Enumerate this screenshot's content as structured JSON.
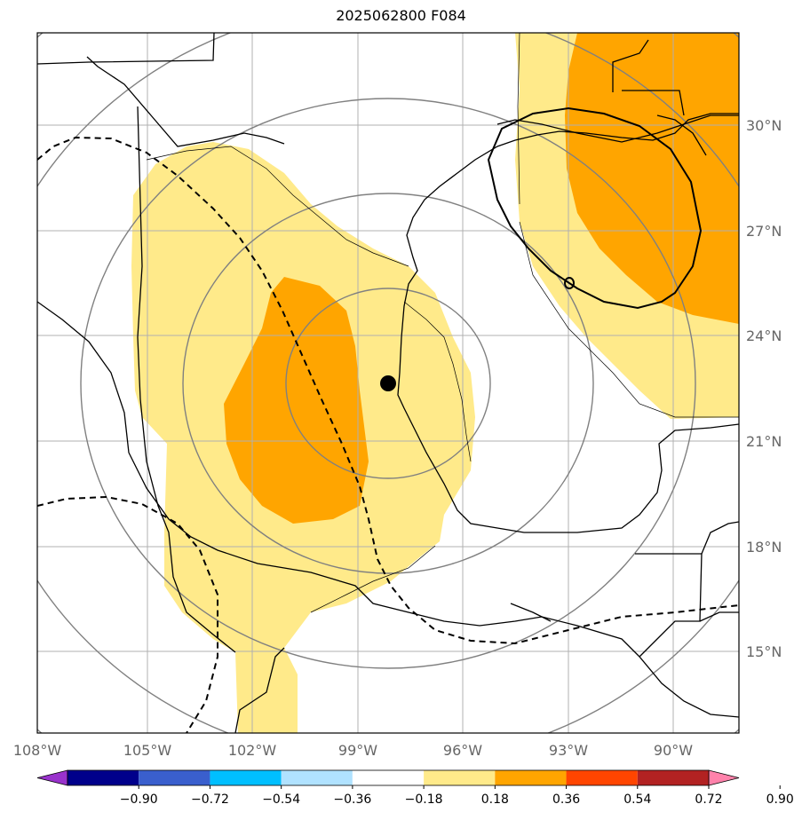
{
  "title": "2025062800 F084",
  "map": {
    "lon_labels": [
      "108°W",
      "105°W",
      "102°W",
      "99°W",
      "96°W",
      "93°W",
      "90°W"
    ],
    "lat_labels": [
      "30°N",
      "27°N",
      "24°N",
      "21°N",
      "18°N",
      "15°N"
    ],
    "storm_center": {
      "lon": -97.9,
      "lat": 22.6
    }
  },
  "colorbar": {
    "ticks": [
      "−0.90",
      "−0.72",
      "−0.54",
      "−0.36",
      "−0.18",
      "0.18",
      "0.36",
      "0.54",
      "0.72",
      "0.90"
    ],
    "colors": [
      "#9932cc",
      "#00008b",
      "#3a5fcd",
      "#00bfff",
      "#b0e2ff",
      "#ffffff",
      "#ffea8a",
      "#ffa500",
      "#ff4500",
      "#b22222",
      "#ff82ab"
    ]
  }
}
